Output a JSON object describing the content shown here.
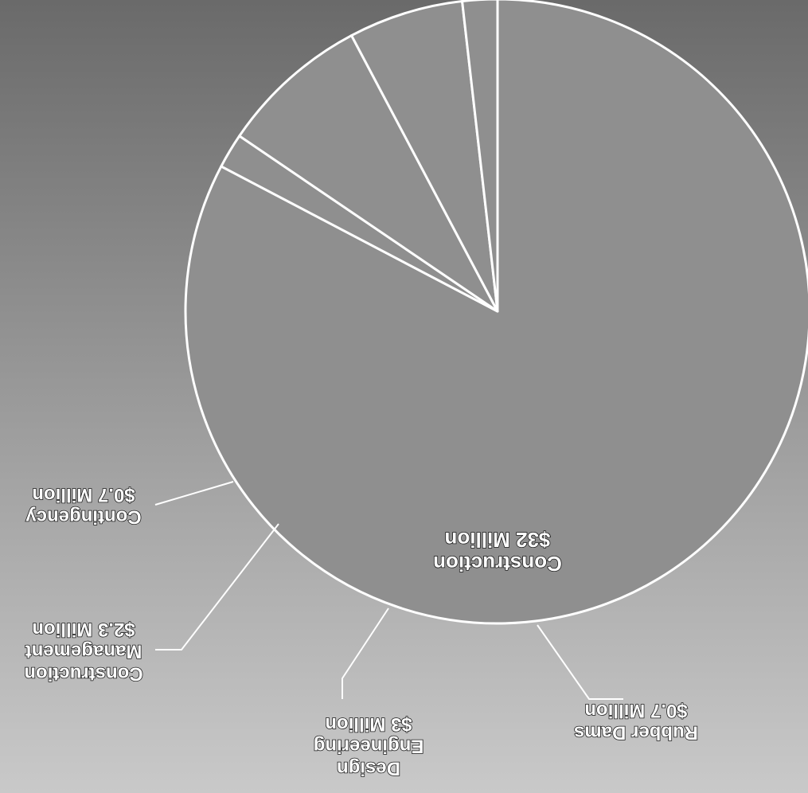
{
  "chart_data": {
    "type": "pie",
    "unit": "Million",
    "slices": [
      {
        "name": "Construction",
        "value": 32,
        "label_lines": [
          "Construction",
          "$32 Million"
        ]
      },
      {
        "name": "Rubber Dams",
        "value": 0.7,
        "label_lines": [
          "Rubber Dams",
          "$0.7 Million"
        ]
      },
      {
        "name": "Design Engineering",
        "value": 3,
        "label_lines": [
          "Design",
          "Engineering",
          "$3 Million"
        ]
      },
      {
        "name": "Construction Management",
        "value": 2.3,
        "label_lines": [
          "Construction",
          "Management",
          "$2.3 Million"
        ]
      },
      {
        "name": "Contingency",
        "value": 0.7,
        "label_lines": [
          "Contingency",
          "$0.7 Million"
        ]
      }
    ],
    "colors": {
      "slice_fill": "#8f8f8f",
      "slice_stroke": "#ffffff",
      "background_top": "#c9c9c9",
      "background_bottom": "#6a6a6a"
    },
    "legend": "none",
    "orientation": "rotated-180"
  }
}
